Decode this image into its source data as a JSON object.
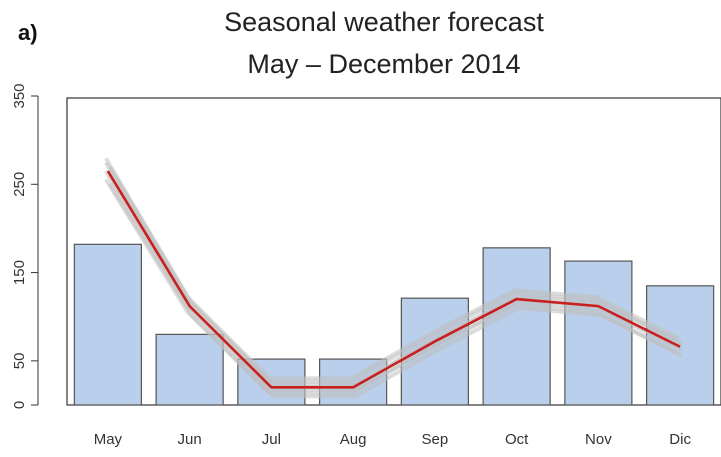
{
  "panel_label": "a)",
  "chart_data": {
    "type": "bar",
    "title": "Seasonal weather forecast",
    "subtitle": "May – December 2014",
    "categories": [
      "May",
      "Jun",
      "Jul",
      "Aug",
      "Sep",
      "Oct",
      "Nov",
      "Dic"
    ],
    "values": [
      182,
      80,
      52,
      52,
      121,
      178,
      163,
      135
    ],
    "line_series": {
      "values": [
        265,
        112,
        20,
        20,
        72,
        120,
        112,
        66
      ],
      "color": "#c8201e"
    },
    "ensemble_band_color": "#c0c0c0",
    "bar_color": "#b9cfeb",
    "bar_edge_color": "#555555",
    "ylim": [
      0,
      350
    ],
    "yticks": [
      0,
      50,
      150,
      250,
      350
    ],
    "xlabel": "",
    "ylabel": "",
    "grid": false,
    "legend": "none"
  }
}
